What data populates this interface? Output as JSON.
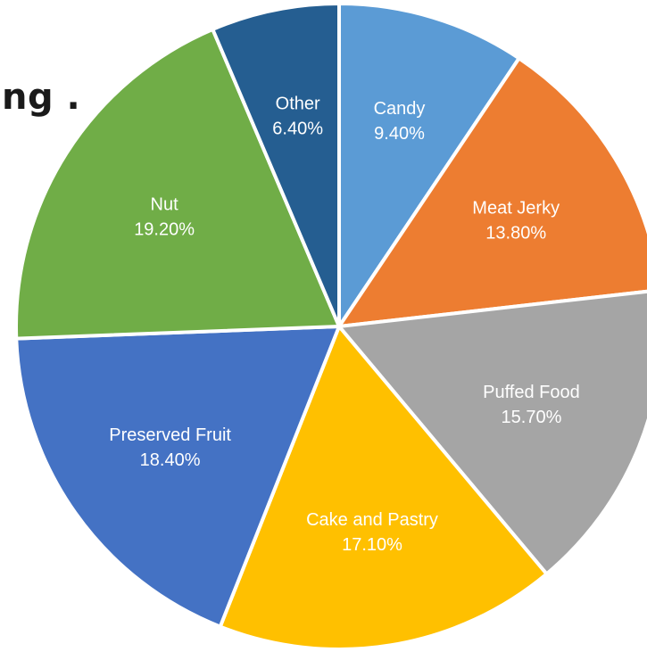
{
  "title_fragment": "ng .",
  "chart_data": {
    "type": "pie",
    "title": "",
    "start_angle_deg": 0,
    "direction": "clockwise",
    "slices": [
      {
        "label": "Candy",
        "value": 9.4,
        "value_label": "9.40%",
        "color": "#5B9BD5"
      },
      {
        "label": "Meat Jerky",
        "value": 13.8,
        "value_label": "13.80%",
        "color": "#ED7D31"
      },
      {
        "label": "Puffed Food",
        "value": 15.7,
        "value_label": "15.70%",
        "color": "#A5A5A5"
      },
      {
        "label": "Cake and Pastry",
        "value": 17.1,
        "value_label": "17.10%",
        "color": "#FFC000"
      },
      {
        "label": "Preserved Fruit",
        "value": 18.4,
        "value_label": "18.40%",
        "color": "#4472C4"
      },
      {
        "label": "Nut",
        "value": 19.2,
        "value_label": "19.20%",
        "color": "#70AD47"
      },
      {
        "label": "Other",
        "value": 6.4,
        "value_label": "6.40%",
        "color": "#255E91"
      }
    ]
  }
}
